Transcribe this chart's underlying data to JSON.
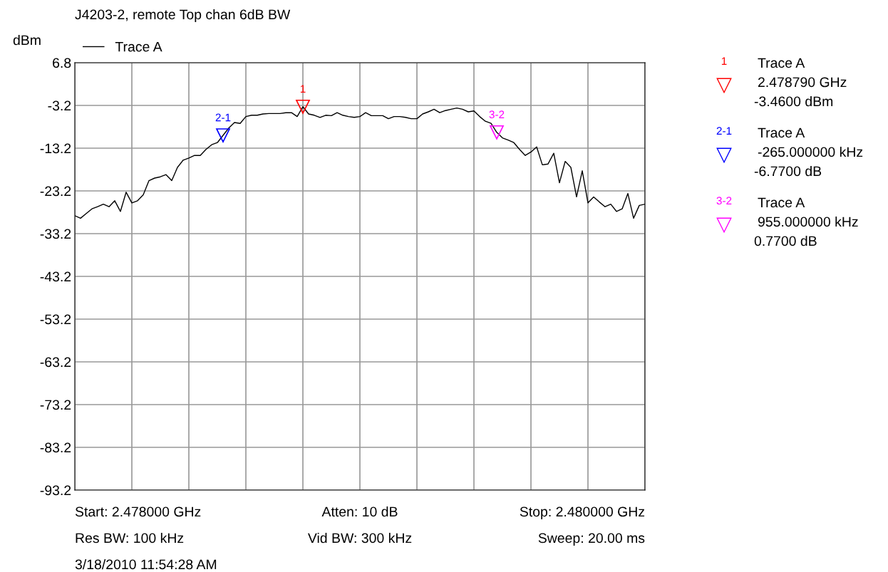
{
  "chart_data": {
    "type": "line",
    "title": "J4203-2, remote Top chan 6dB BW",
    "ylabel": "dBm",
    "categories": [
      null,
      null,
      null,
      null,
      null,
      null,
      null,
      null,
      null,
      null,
      null,
      null,
      null,
      null,
      null,
      null,
      null,
      null,
      null,
      null,
      null,
      null,
      null,
      null,
      null,
      null,
      null,
      null,
      null,
      null,
      null,
      null,
      null,
      null,
      null,
      null,
      null,
      null,
      null,
      null,
      null,
      null,
      null,
      null,
      null,
      null,
      null,
      null,
      null,
      null,
      null,
      null,
      null,
      null,
      null,
      null,
      null,
      null,
      null,
      null,
      null,
      null,
      null,
      null,
      null,
      null,
      null,
      null,
      null,
      null,
      null,
      null,
      null,
      null,
      null,
      null,
      null,
      null,
      null,
      null,
      null,
      null,
      null,
      null,
      null,
      null,
      null,
      null,
      null,
      null,
      null,
      null,
      null,
      null,
      null,
      null,
      null,
      null,
      null,
      null,
      null
    ],
    "series": [
      {
        "name": "Trace A",
        "color": "#000000",
        "values": [
          -29.0,
          -29.6,
          -28.5,
          -27.4,
          -26.9,
          -26.3,
          -26.9,
          -25.5,
          -28.0,
          -23.5,
          -26.0,
          -25.5,
          -24.1,
          -20.8,
          -20.2,
          -19.9,
          -19.4,
          -20.8,
          -17.7,
          -16.0,
          -15.5,
          -14.9,
          -14.9,
          -13.5,
          -12.4,
          -11.9,
          -10.2,
          -8.5,
          -7.2,
          -7.4,
          -5.8,
          -5.5,
          -5.5,
          -5.2,
          -5.1,
          -5.1,
          -5.1,
          -4.9,
          -4.9,
          -5.8,
          -3.5,
          -5.2,
          -5.5,
          -6.0,
          -5.5,
          -5.6,
          -4.9,
          -5.5,
          -5.8,
          -6.0,
          -5.8,
          -4.9,
          -5.6,
          -5.6,
          -5.6,
          -6.3,
          -5.8,
          -5.8,
          -6.0,
          -6.3,
          -6.3,
          -5.2,
          -4.7,
          -4.1,
          -4.9,
          -4.4,
          -4.1,
          -3.8,
          -4.1,
          -4.7,
          -4.5,
          -5.8,
          -6.9,
          -7.4,
          -9.5,
          -10.8,
          -11.3,
          -11.9,
          -13.5,
          -14.9,
          -14.1,
          -12.9,
          -17.1,
          -16.9,
          -14.4,
          -21.3,
          -16.3,
          -17.7,
          -24.6,
          -18.5,
          -26.0,
          -24.6,
          -25.8,
          -26.9,
          -26.3,
          -28.0,
          -27.4,
          -23.8,
          -29.6,
          -26.6,
          -26.3
        ]
      },
      {
        "type": "scatter",
        "name": "1",
        "color": "#ff0000",
        "marker": "triangle",
        "values": [
          null,
          null,
          null,
          null,
          null,
          null,
          null,
          null,
          null,
          null,
          null,
          null,
          null,
          null,
          null,
          null,
          null,
          null,
          null,
          null,
          null,
          null,
          null,
          null,
          null,
          null,
          null,
          null,
          null,
          null,
          null,
          null,
          null,
          null,
          null,
          null,
          null,
          null,
          null,
          null,
          -3.5,
          null,
          null,
          null,
          null,
          null,
          null,
          null,
          null,
          null,
          null,
          null,
          null,
          null,
          null,
          null,
          null,
          null,
          null,
          null,
          null,
          null,
          null,
          null,
          null,
          null,
          null,
          null,
          null,
          null,
          null,
          null,
          null,
          null,
          null,
          null,
          null,
          null,
          null,
          null,
          null,
          null,
          null,
          null,
          null,
          null,
          null,
          null,
          null,
          null,
          null,
          null,
          null,
          null,
          null,
          null,
          null,
          null,
          null,
          null,
          null
        ]
      },
      {
        "type": "scatter",
        "name": "2-1",
        "color": "#0000ff",
        "marker": "triangle",
        "values": [
          null,
          null,
          null,
          null,
          null,
          null,
          null,
          null,
          null,
          null,
          null,
          null,
          null,
          null,
          null,
          null,
          null,
          null,
          null,
          null,
          null,
          null,
          null,
          null,
          null,
          null,
          -10.2,
          null,
          null,
          null,
          null,
          null,
          null,
          null,
          null,
          null,
          null,
          null,
          null,
          null,
          null,
          null,
          null,
          null,
          null,
          null,
          null,
          null,
          null,
          null,
          null,
          null,
          null,
          null,
          null,
          null,
          null,
          null,
          null,
          null,
          null,
          null,
          null,
          null,
          null,
          null,
          null,
          null,
          null,
          null,
          null,
          null,
          null,
          null,
          null,
          null,
          null,
          null,
          null,
          null,
          null,
          null,
          null,
          null,
          null,
          null,
          null,
          null,
          null,
          null,
          null,
          null,
          null,
          null,
          null,
          null,
          null,
          null,
          null,
          null,
          null
        ]
      },
      {
        "type": "scatter",
        "name": "3-2",
        "color": "#ff00ff",
        "marker": "triangle",
        "values": [
          null,
          null,
          null,
          null,
          null,
          null,
          null,
          null,
          null,
          null,
          null,
          null,
          null,
          null,
          null,
          null,
          null,
          null,
          null,
          null,
          null,
          null,
          null,
          null,
          null,
          null,
          null,
          null,
          null,
          null,
          null,
          null,
          null,
          null,
          null,
          null,
          null,
          null,
          null,
          null,
          null,
          null,
          null,
          null,
          null,
          null,
          null,
          null,
          null,
          null,
          null,
          null,
          null,
          null,
          null,
          null,
          null,
          null,
          null,
          null,
          null,
          null,
          null,
          null,
          null,
          null,
          null,
          null,
          null,
          null,
          null,
          null,
          null,
          null,
          -9.5,
          null,
          null,
          null,
          null,
          null,
          null,
          null,
          null,
          null,
          null,
          null,
          null,
          null,
          null,
          null,
          null,
          null,
          null,
          null,
          null,
          null,
          null,
          null,
          null,
          null,
          null
        ]
      }
    ],
    "ylim": [
      -93.2,
      6.8
    ],
    "yticks": [
      6.8,
      -3.2,
      -13.2,
      -23.2,
      -33.2,
      -43.2,
      -53.2,
      -63.2,
      -73.2,
      -83.2,
      -93.2
    ],
    "grid": true,
    "legend": "top left",
    "annotations": [
      "1",
      "Trace A",
      "2.478790 GHz",
      "-3.4600 dBm",
      "2-1",
      "Trace A",
      "-265.000000 kHz",
      "-6.7700 dB",
      "3-2",
      "Trace A",
      "955.000000 kHz",
      "0.7700 dB",
      "Start: 2.478000 GHz",
      "Atten: 10 dB",
      "Stop: 2.480000 GHz",
      "Res BW: 100 kHz",
      "Vid BW: 300 kHz",
      "Sweep: 20.00 ms",
      "3/18/2010 11:54:28 AM"
    ]
  }
}
